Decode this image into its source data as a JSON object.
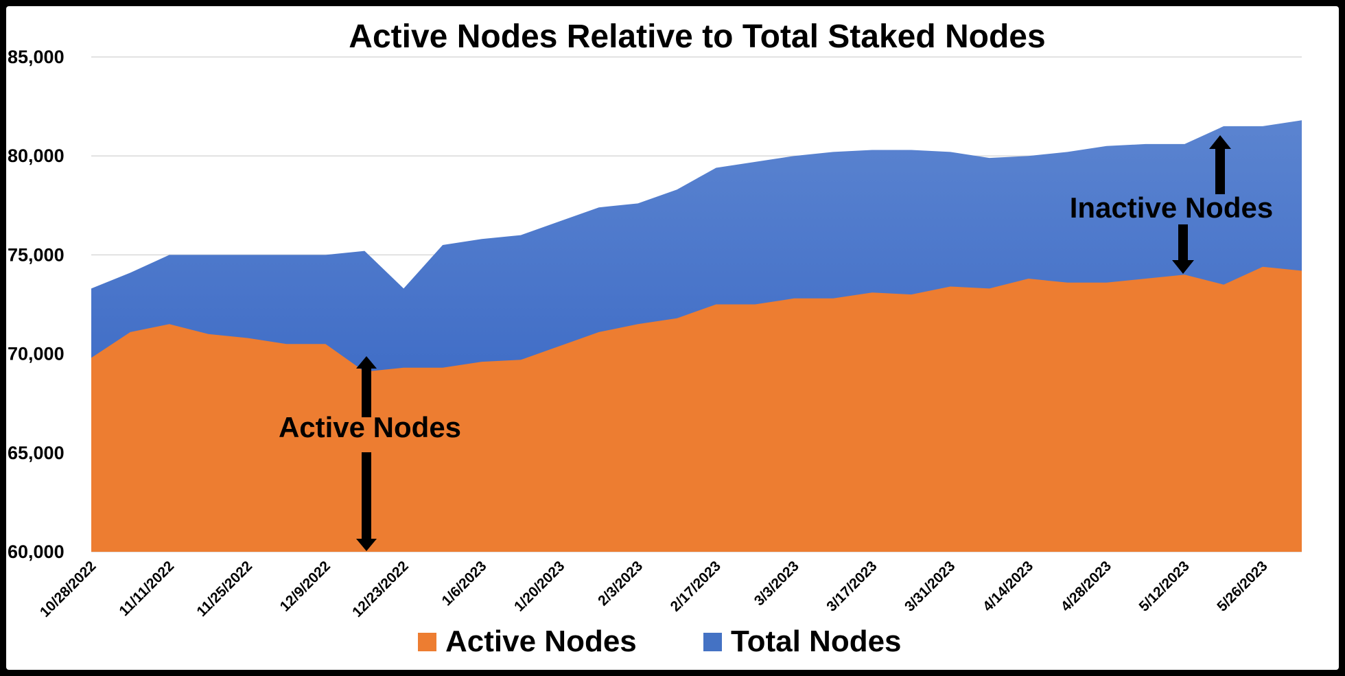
{
  "chart_data": {
    "type": "area",
    "title": "Active Nodes Relative to Total Staked Nodes",
    "xlabel": "",
    "ylabel": "",
    "ylim": [
      60000,
      85000
    ],
    "yticks": [
      "60,000",
      "65,000",
      "70,000",
      "75,000",
      "80,000",
      "85,000"
    ],
    "ytick_values": [
      60000,
      65000,
      70000,
      75000,
      80000,
      85000
    ],
    "xtick_labels": [
      "10/28/2022",
      "11/11/2022",
      "11/25/2022",
      "12/9/2022",
      "12/23/2022",
      "1/6/2023",
      "1/20/2023",
      "2/3/2023",
      "2/17/2023",
      "3/3/2023",
      "3/17/2023",
      "3/31/2023",
      "4/14/2023",
      "4/28/2023",
      "5/12/2023",
      "5/26/2023"
    ],
    "grid": "horizontal",
    "legend": "bottom",
    "series": [
      {
        "name": "Total Nodes",
        "color": "#4472C4",
        "values": [
          73300,
          74100,
          75000,
          75000,
          75000,
          75000,
          75000,
          75200,
          73300,
          75500,
          75800,
          76000,
          76700,
          77400,
          77600,
          78300,
          79400,
          79700,
          80000,
          80200,
          80300,
          80300,
          80200,
          79900,
          80000,
          80200,
          80500,
          80600,
          80600,
          81500,
          81500,
          81800
        ]
      },
      {
        "name": "Active Nodes",
        "color": "#ED7D31",
        "values": [
          69800,
          71100,
          71500,
          71000,
          70800,
          70500,
          70500,
          69100,
          69300,
          69300,
          69600,
          69700,
          70400,
          71100,
          71500,
          71800,
          72500,
          72500,
          72800,
          72800,
          73100,
          73000,
          73400,
          73300,
          73800,
          73600,
          73600,
          73800,
          74000,
          73500,
          74400,
          74200
        ]
      }
    ],
    "annotations": [
      {
        "text": "Active Nodes"
      },
      {
        "text": "Inactive Nodes"
      }
    ]
  },
  "legend": {
    "active_label": "Active Nodes",
    "total_label": "Total Nodes"
  }
}
